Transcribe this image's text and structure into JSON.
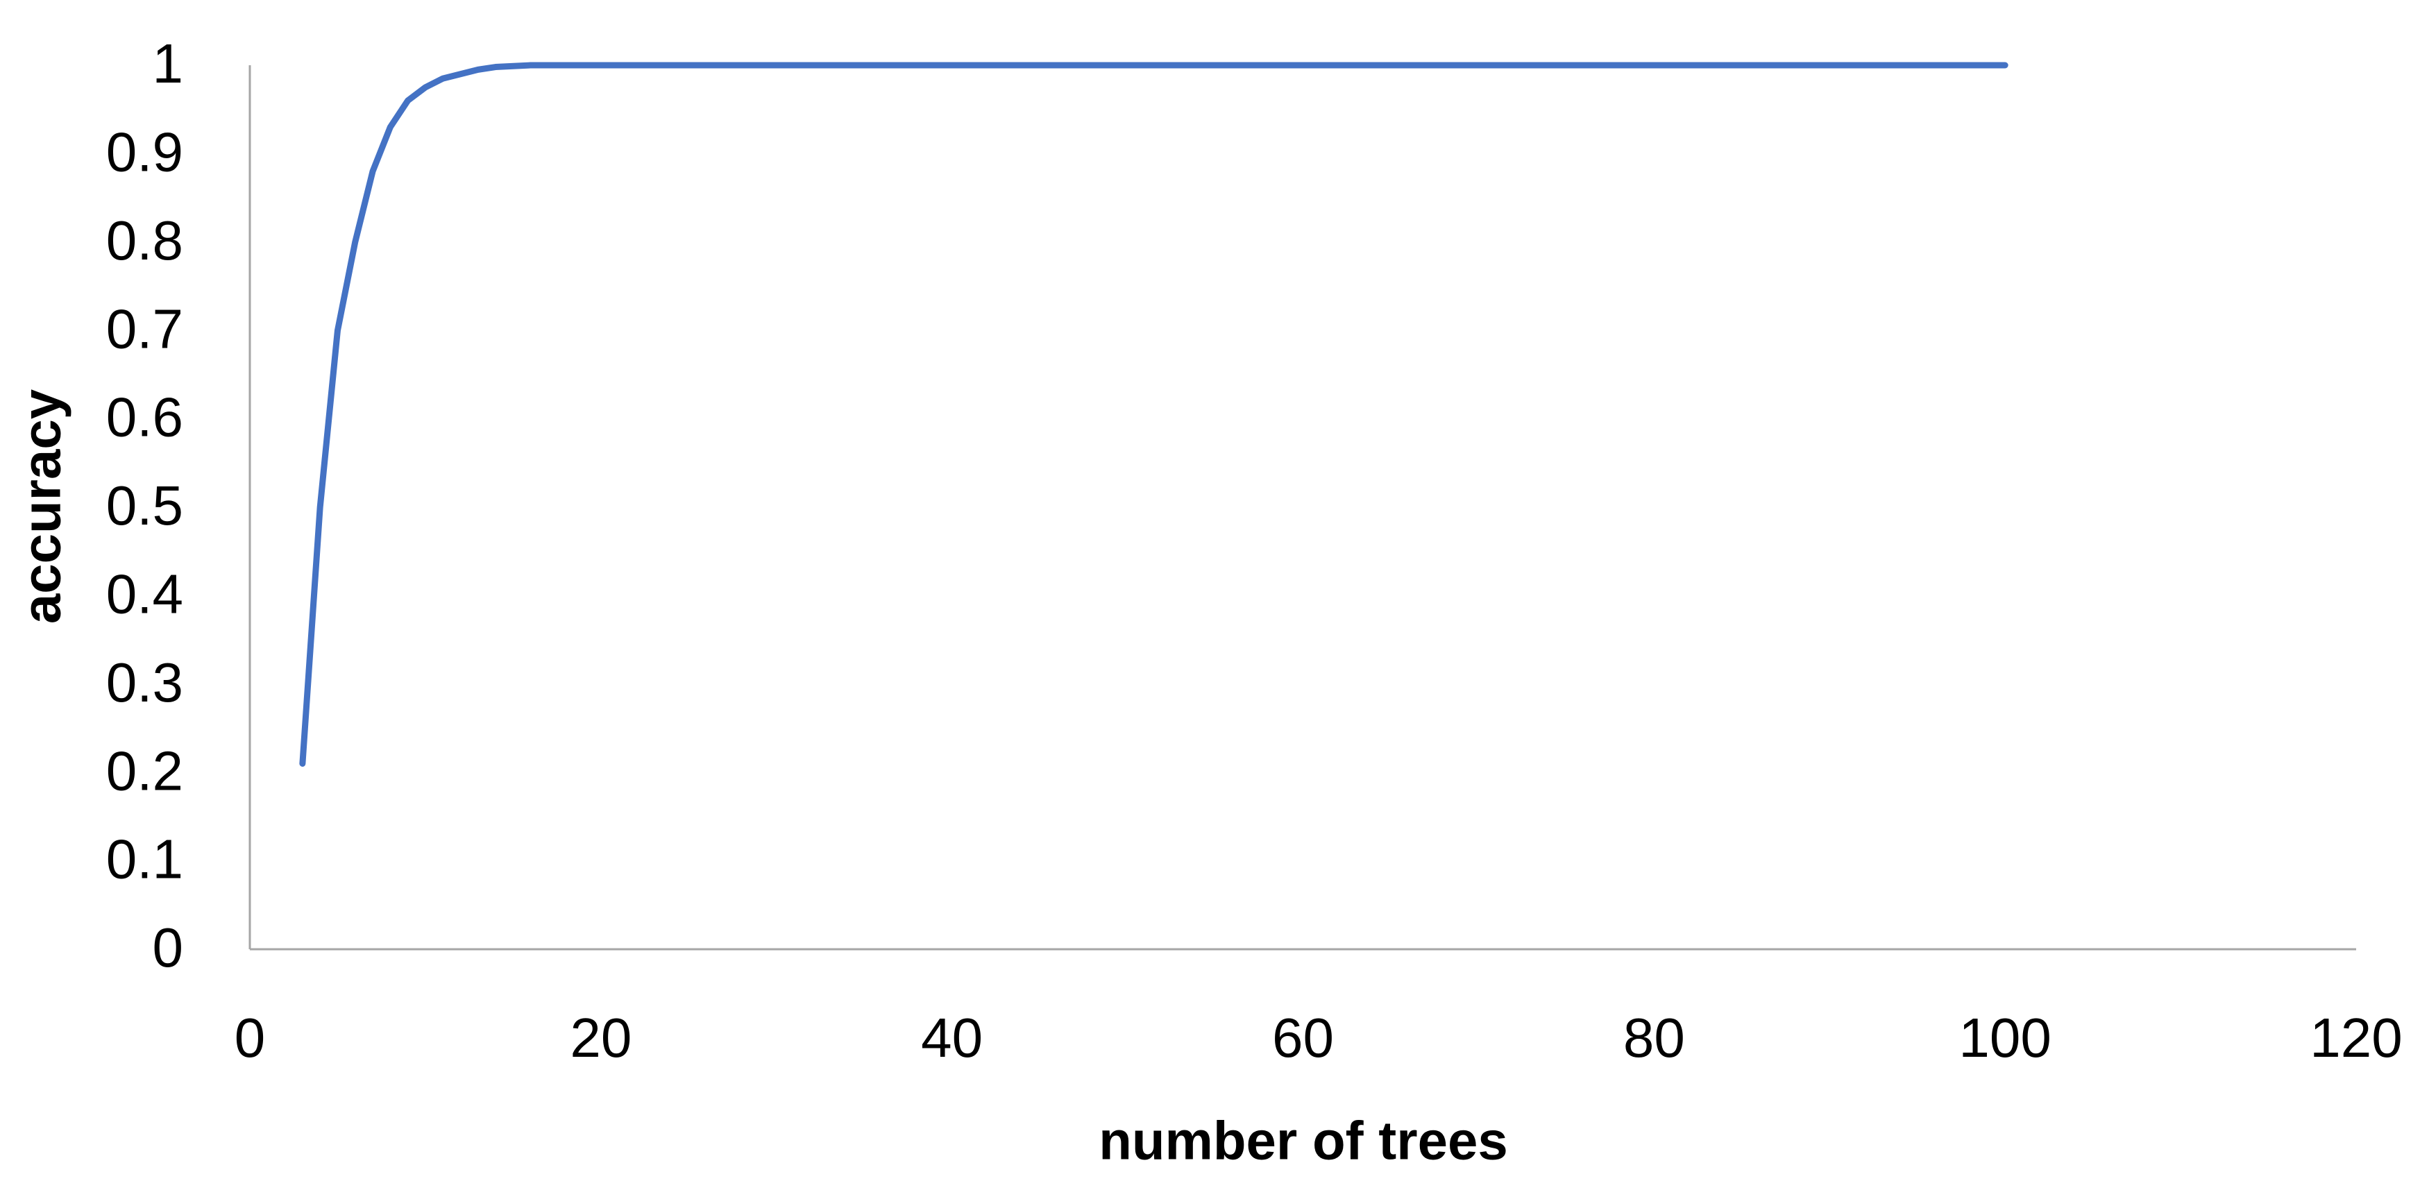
{
  "chart_data": {
    "type": "line",
    "x_label": "number of trees",
    "y_label": "accuracy",
    "series": [
      {
        "name": "accuracy",
        "color": "#4472c4",
        "x": [
          3,
          4,
          5,
          6,
          7,
          8,
          9,
          10,
          11,
          12,
          13,
          14,
          16,
          18,
          20,
          40,
          60,
          80,
          100
        ],
        "values": [
          0.21,
          0.5,
          0.7,
          0.8,
          0.88,
          0.93,
          0.96,
          0.975,
          0.985,
          0.99,
          0.995,
          0.998,
          1,
          1,
          1,
          1,
          1,
          1,
          1
        ]
      }
    ],
    "xlim": [
      0,
      120
    ],
    "xticks": [
      0,
      20,
      40,
      60,
      80,
      100,
      120
    ],
    "ylim": [
      0,
      1
    ],
    "yticks": [
      0,
      0.1,
      0.2,
      0.3,
      0.4,
      0.5,
      0.6,
      0.7,
      0.8,
      0.9,
      1
    ]
  }
}
